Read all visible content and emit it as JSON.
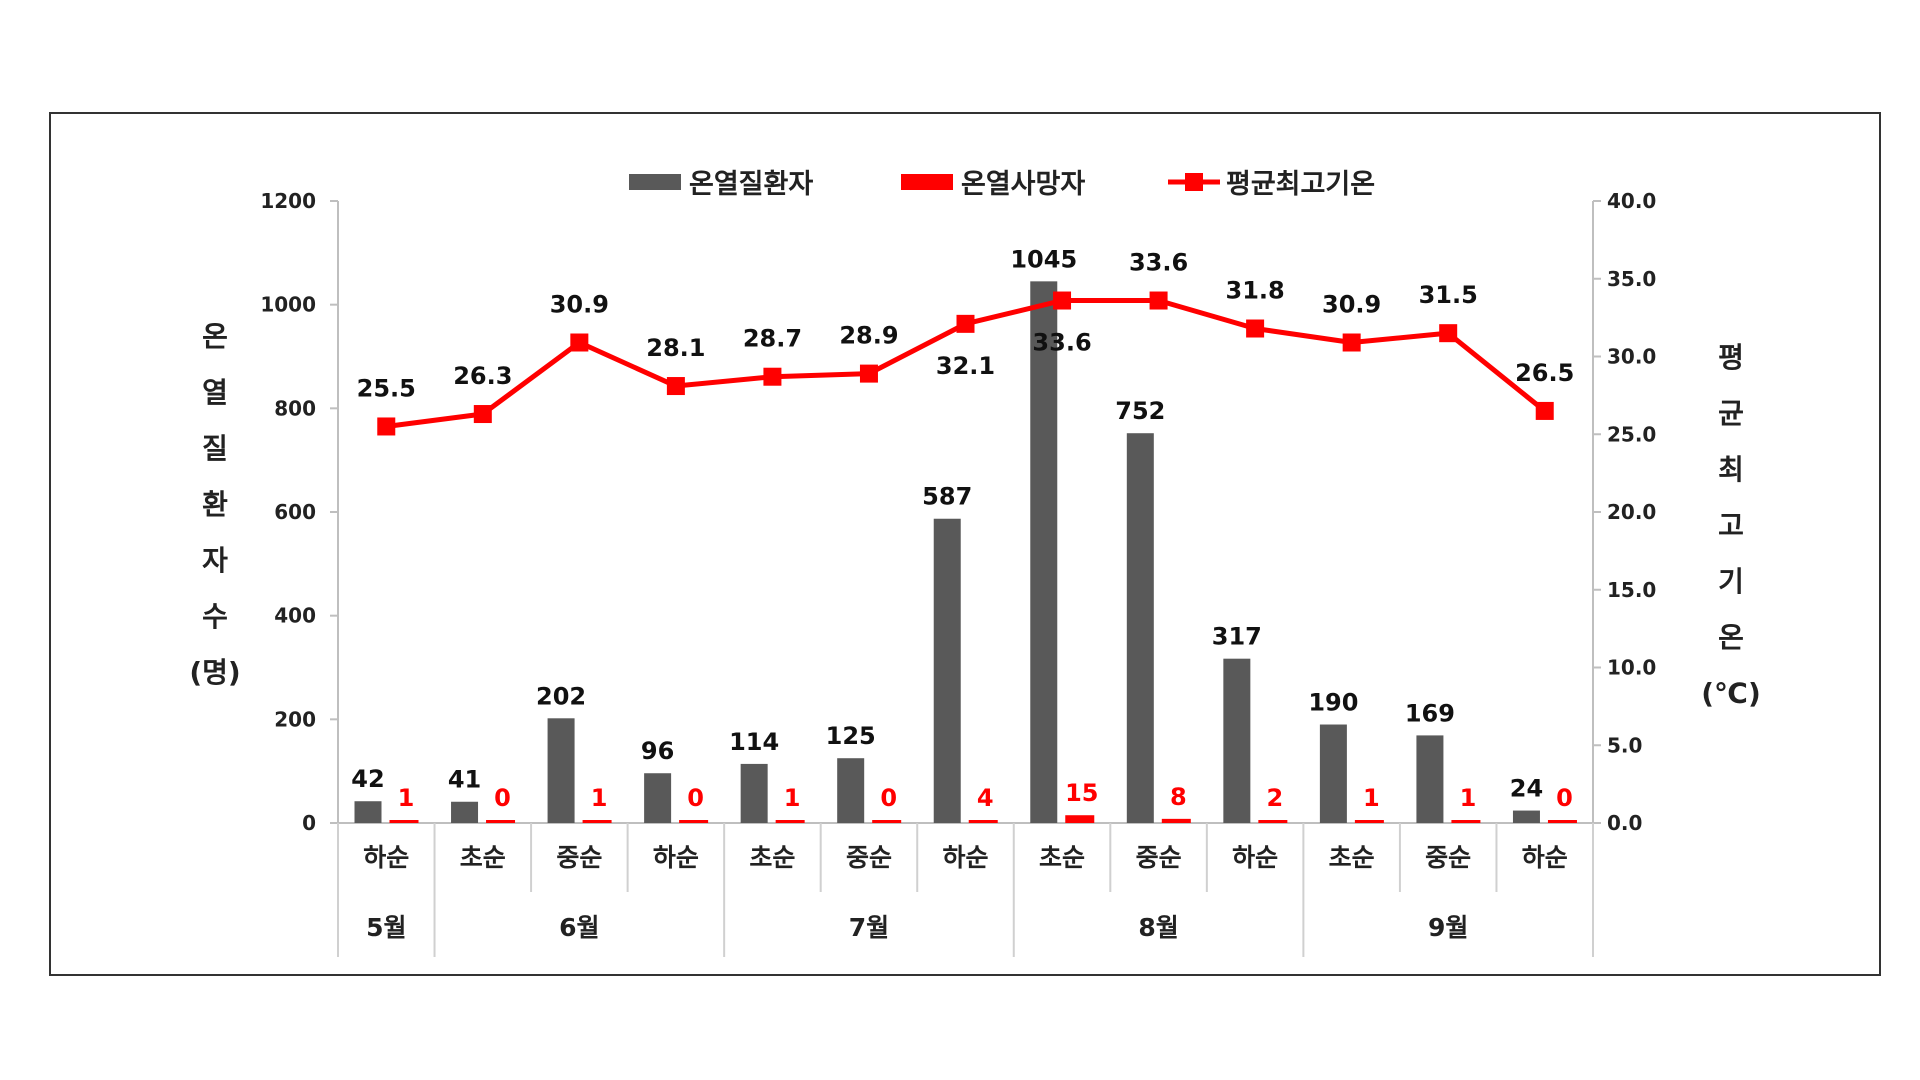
{
  "chart_data": {
    "type": "bar",
    "categories": [
      "하순",
      "초순",
      "중순",
      "하순",
      "초순",
      "중순",
      "하순",
      "초순",
      "중순",
      "하순",
      "초순",
      "중순",
      "하순"
    ],
    "month_groups": [
      {
        "label": "5월",
        "span": 1
      },
      {
        "label": "6월",
        "span": 3
      },
      {
        "label": "7월",
        "span": 3
      },
      {
        "label": "8월",
        "span": 3
      },
      {
        "label": "9월",
        "span": 3
      }
    ],
    "series": [
      {
        "name": "온열질환자",
        "type": "bar",
        "axis": "left",
        "values": [
          42,
          41,
          202,
          96,
          114,
          125,
          587,
          1045,
          752,
          317,
          190,
          169,
          24
        ],
        "color": "#595959"
      },
      {
        "name": "온열사망자",
        "type": "bar",
        "axis": "left",
        "values": [
          1,
          0,
          1,
          0,
          1,
          0,
          4,
          15,
          8,
          2,
          1,
          1,
          0
        ],
        "color": "#ff0000"
      },
      {
        "name": "평균최고기온",
        "type": "line",
        "axis": "right",
        "values": [
          25.5,
          26.3,
          30.9,
          28.1,
          28.7,
          28.9,
          32.1,
          33.6,
          33.6,
          31.8,
          30.9,
          31.5,
          26.5
        ],
        "color": "#ff0000"
      }
    ],
    "y_left": {
      "label_chars": [
        "온",
        "열",
        "질",
        "환",
        "자",
        "수",
        "(명)"
      ],
      "ylim": [
        0,
        1200
      ],
      "ticks": [
        "0",
        "200",
        "400",
        "600",
        "800",
        "1000",
        "1200"
      ]
    },
    "y_right": {
      "label_chars": [
        "평",
        "균",
        "최",
        "고",
        "기",
        "온",
        "(℃)"
      ],
      "ylim": [
        0,
        40
      ],
      "ticks": [
        "0.0",
        "5.0",
        "10.0",
        "15.0",
        "20.0",
        "25.0",
        "30.0",
        "35.0",
        "40.0"
      ]
    },
    "legend_position": "top-center",
    "grid": false
  }
}
